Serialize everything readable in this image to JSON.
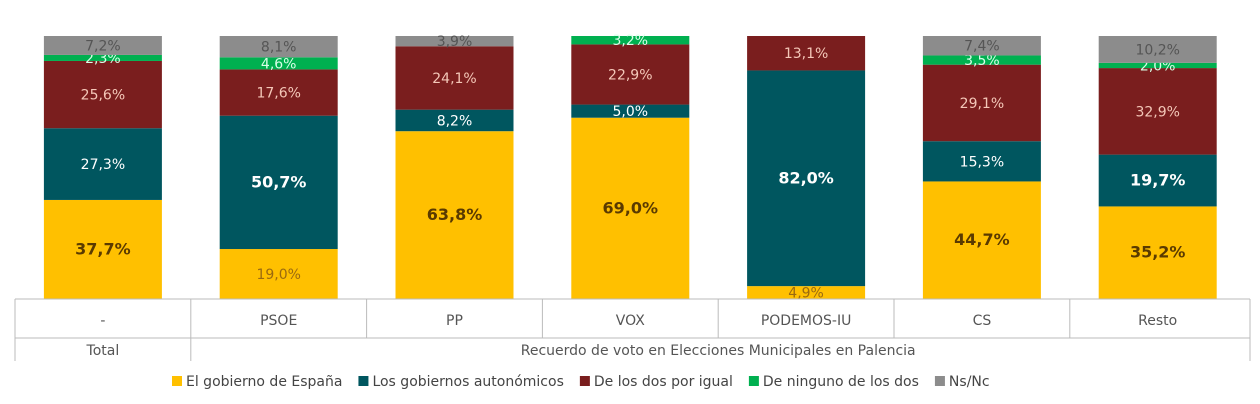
{
  "chart_data": {
    "type": "bar",
    "stacked": true,
    "categories": [
      "-",
      "PSOE",
      "PP",
      "VOX",
      "PODEMOS-IU",
      "CS",
      "Resto"
    ],
    "group_labels": [
      {
        "label": "Total",
        "span": [
          0,
          0
        ]
      },
      {
        "label": "Recuerdo de voto en Elecciones Municipales en Palencia",
        "span": [
          1,
          6
        ]
      }
    ],
    "series": [
      {
        "name": "El gobierno de España",
        "color": "#FFC000",
        "label_color": "#5a3a00",
        "values": [
          37.7,
          19.0,
          63.8,
          69.0,
          4.9,
          44.7,
          35.2
        ],
        "labels": [
          "37,7%",
          "19,0%",
          "63,8%",
          "69,0%",
          "4,9%",
          "44,7%",
          "35,2%"
        ]
      },
      {
        "name": "Los gobiernos autonómicos",
        "color": "#00565F",
        "label_color": "#ffffff",
        "values": [
          27.3,
          50.7,
          8.2,
          5.0,
          82.0,
          15.3,
          19.7
        ],
        "labels": [
          "27,3%",
          "50,7%",
          "8,2%",
          "5,0%",
          "82,0%",
          "15,3%",
          "19,7%"
        ]
      },
      {
        "name": "De los dos por igual",
        "color": "#7A1E1E",
        "label_color": "#F4C7B8",
        "values": [
          25.6,
          17.6,
          24.1,
          22.9,
          13.1,
          29.1,
          32.9
        ],
        "labels": [
          "25,6%",
          "17,6%",
          "24,1%",
          "22,9%",
          "13,1%",
          "29,1%",
          "32,9%"
        ]
      },
      {
        "name": "De ninguno de los dos",
        "color": "#00B050",
        "label_color": "#D8FFE8",
        "values": [
          2.3,
          4.6,
          0,
          3.2,
          0,
          3.5,
          2.0
        ],
        "labels": [
          "2,3%",
          "4,6%",
          "",
          "3,2%",
          "",
          "3,5%",
          "2,0%"
        ]
      },
      {
        "name": "Ns/Nc",
        "color": "#8C8C8C",
        "label_color": "#555555",
        "values": [
          7.2,
          8.1,
          3.9,
          0,
          0,
          7.4,
          10.2
        ],
        "labels": [
          "7,2%",
          "8,1%",
          "3,9%",
          "",
          "",
          "7,4%",
          "10,2%"
        ]
      }
    ],
    "bold_labels": [
      [
        0,
        0
      ],
      [
        1,
        1
      ],
      [
        0,
        2
      ],
      [
        0,
        3
      ],
      [
        1,
        4
      ],
      [
        0,
        5
      ],
      [
        0,
        6
      ],
      [
        1,
        6
      ]
    ],
    "ylim": [
      0,
      100
    ],
    "legend_position": "bottom"
  }
}
